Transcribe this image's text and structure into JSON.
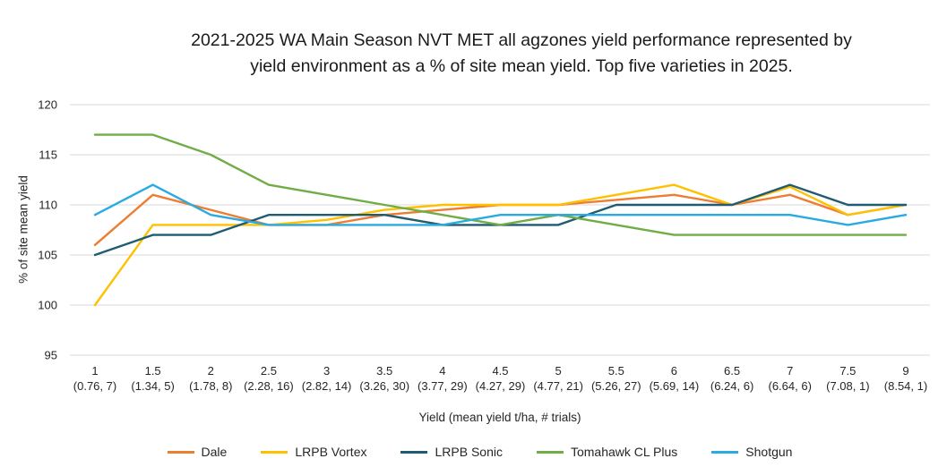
{
  "title": {
    "line1": "2021-2025 WA Main Season NVT MET all agzones yield performance represented by",
    "line2": "yield environment as a % of site mean yield. Top five varieties in 2025."
  },
  "y_axis": {
    "label": "% of site mean yield"
  },
  "x_axis": {
    "label": "Yield (mean yield t/ha, # trials)"
  },
  "colors": {
    "gridline": "#d9d9d9",
    "tick_text": "#262626"
  },
  "chart_data": {
    "type": "line",
    "title": "2021-2025 WA Main Season NVT MET all agzones yield performance represented by yield environment as a % of site mean yield. Top five varieties in 2025.",
    "xlabel": "Yield (mean yield t/ha, # trials)",
    "ylabel": "% of site mean yield",
    "ylim": [
      95,
      120
    ],
    "y_ticks": [
      120,
      115,
      110,
      105,
      100,
      95
    ],
    "grid": "horizontal-only",
    "legend_position": "bottom",
    "categories": [
      "1",
      "1.5",
      "2",
      "2.5",
      "3",
      "3.5",
      "4",
      "4.5",
      "5",
      "5.5",
      "6",
      "6.5",
      "7",
      "7.5",
      "9"
    ],
    "category_details": [
      "(0.76, 7)",
      "(1.34, 5)",
      "(1.78, 8)",
      "(2.28, 16)",
      "(2.82, 14)",
      "(3.26, 30)",
      "(3.77, 29)",
      "(4.27, 29)",
      "(4.77, 21)",
      "(5.26, 27)",
      "(5.69, 14)",
      "(6.24, 6)",
      "(6.64, 6)",
      "(7.08, 1)",
      "(8.54, 1)"
    ],
    "series": [
      {
        "name": "Dale",
        "color": "#ED7D31",
        "values": [
          106,
          111,
          109.5,
          108,
          108,
          109,
          109.5,
          110,
          110,
          110.5,
          111,
          110,
          111,
          109,
          110
        ]
      },
      {
        "name": "LRPB Vortex",
        "color": "#FFC000",
        "values": [
          100,
          108,
          108,
          108,
          108.5,
          109.5,
          110,
          110,
          110,
          111,
          112,
          110,
          111.8,
          109,
          110
        ]
      },
      {
        "name": "LRPB Sonic",
        "color": "#1F5C73",
        "values": [
          105,
          107,
          107,
          109,
          109,
          109,
          108,
          108,
          108,
          110,
          110,
          110,
          112,
          110,
          110
        ]
      },
      {
        "name": "Tomahawk CL Plus",
        "color": "#70AD47",
        "values": [
          117,
          117,
          115,
          112,
          111,
          110,
          109,
          108,
          109,
          108,
          107,
          107,
          107,
          107,
          107
        ]
      },
      {
        "name": "Shotgun",
        "color": "#29ABE2",
        "values": [
          109,
          112,
          109,
          108,
          108,
          108,
          108,
          109,
          109,
          109,
          109,
          109,
          109,
          108,
          109
        ]
      }
    ]
  }
}
